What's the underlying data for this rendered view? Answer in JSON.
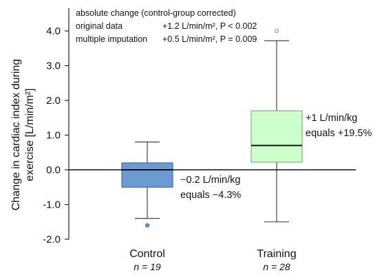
{
  "chart_data": {
    "type": "box",
    "ylabel_line1": "Change in cardiac index during",
    "ylabel_line2": "exercise [L/min/m²]",
    "ylim": [
      -2.0,
      4.3
    ],
    "yticks": [
      "4.0",
      "3.0",
      "2.0",
      "1.0",
      "0.0",
      "-1.0",
      "-2.0"
    ],
    "ytick_values": [
      4.0,
      3.0,
      2.0,
      1.0,
      0.0,
      -1.0,
      -2.0
    ],
    "categories": [
      "Control",
      "Training"
    ],
    "n_labels": [
      "n = 19",
      "n = 28"
    ],
    "boxes": [
      {
        "name": "Control",
        "whisker_low": -1.4,
        "q1": -0.5,
        "median": 0.0,
        "q3": 0.2,
        "whisker_high": 0.8,
        "outliers": [
          -1.6
        ],
        "fill": "#6b9bd2",
        "stroke": "#3d6da6"
      },
      {
        "name": "Training",
        "whisker_low": -1.5,
        "q1": 0.22,
        "median": 0.7,
        "q3": 1.7,
        "whisker_high": 3.72,
        "outliers": [
          4.0
        ],
        "fill": "#ccffcc",
        "stroke": "#7fb07f"
      }
    ],
    "annotations": {
      "control": [
        "−0.2 L/min/kg",
        "equals  −4.3%"
      ],
      "training": [
        "+1 L/min/kg",
        "equals  +19.5%"
      ]
    },
    "stats": {
      "header": "absolute change (control-group corrected)",
      "rows": [
        {
          "label": "original data",
          "value": "+1.2 L/min/m², P < 0.002"
        },
        {
          "label": "multiple imputation",
          "value": "+0.5 L/min/m², P = 0.009"
        }
      ]
    },
    "grid": false,
    "zero_line": true
  }
}
